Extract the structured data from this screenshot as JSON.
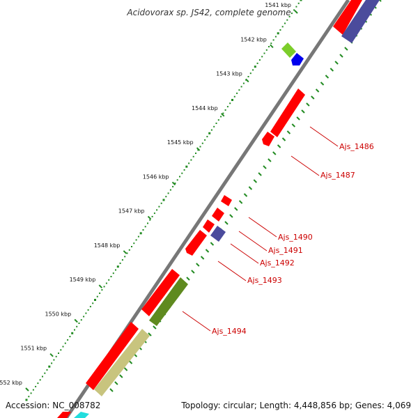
{
  "title": "Acidovorax sp. JS42, complete genome",
  "footer": {
    "accession": "Accession: NC_008782",
    "summary": "Topology: circular; Length: 4,448,856 bp; Genes: 4,069"
  },
  "scale": {
    "ticks": [
      "1541 kbp",
      "1542 kbp",
      "1543 kbp",
      "1544 kbp",
      "1545 kbp",
      "1546 kbp",
      "1547 kbp",
      "1548 kbp",
      "1549 kbp",
      "1550 kbp",
      "1551 kbp",
      "1552 kbp"
    ]
  },
  "gene_labels": [
    "Ajs_1486",
    "Ajs_1487",
    "Ajs_1490",
    "Ajs_1491",
    "Ajs_1492",
    "Ajs_1493",
    "Ajs_1494"
  ],
  "colors": {
    "cds": "#ff0000",
    "blue_feature": "#0000ee",
    "purple_feature": "#4b4b9c",
    "olive_feature": "#5f8a1f",
    "khaki_feature": "#c8c47e",
    "cyan_feature": "#22dddd",
    "green_feature": "#7ccd2a",
    "backbone": "#888888",
    "tick_green": "#228b22",
    "label": "#cc0000"
  }
}
